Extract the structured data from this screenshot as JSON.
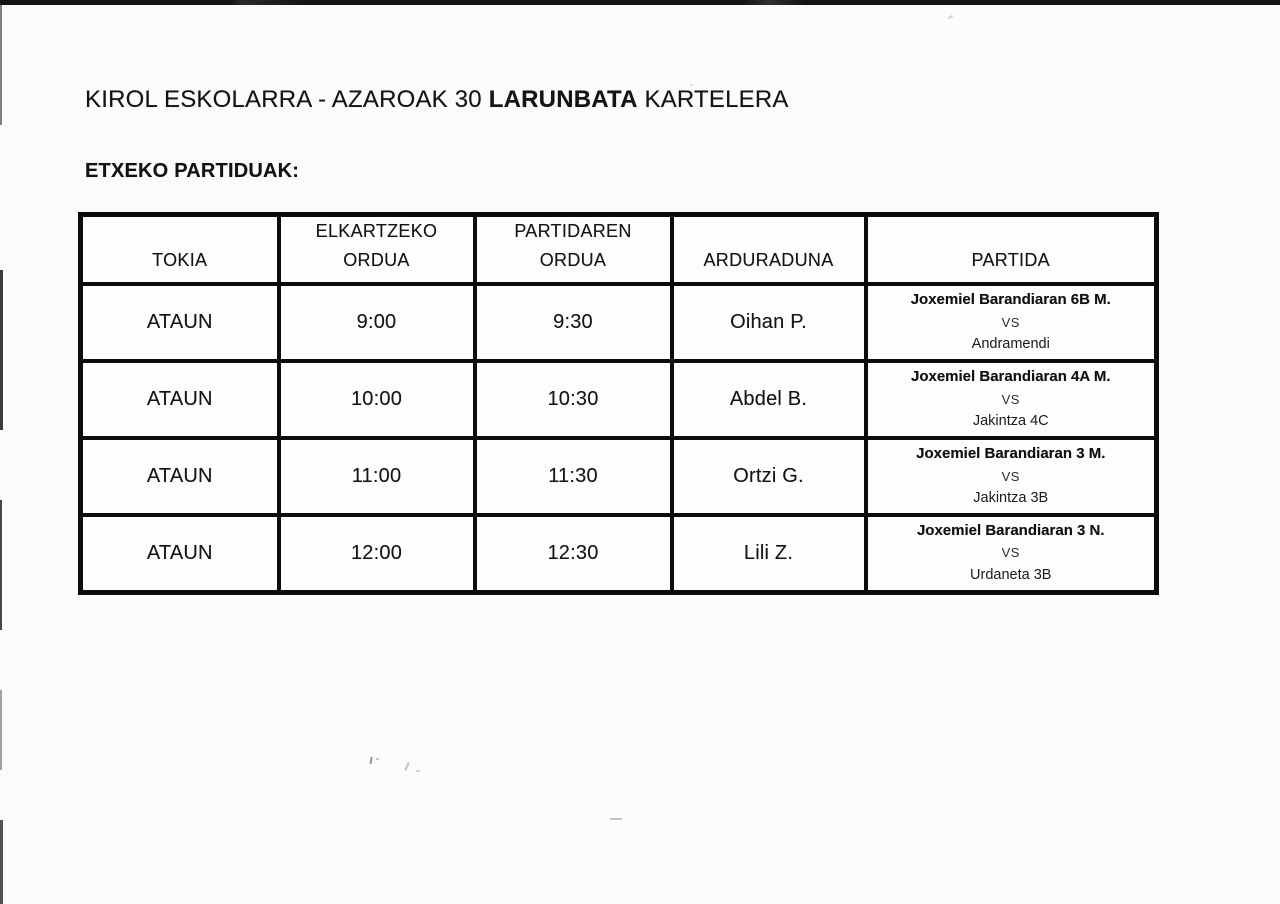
{
  "document": {
    "title": {
      "prefix": "KIROL ESKOLARRA - AZAROAK 30 ",
      "highlight": "LARUNBATA",
      "suffix": " KARTELERA"
    },
    "section_heading": "ETXEKO PARTIDUAK:"
  },
  "table": {
    "headers": [
      {
        "line1": "",
        "line2": "TOKIA"
      },
      {
        "line1": "ELKARTZEKO",
        "line2": "ORDUA"
      },
      {
        "line1": "PARTIDAREN",
        "line2": "ORDUA"
      },
      {
        "line1": "",
        "line2": "ARDURADUNA"
      },
      {
        "line1": "",
        "line2": "PARTIDA"
      }
    ],
    "rows": [
      {
        "tokia": "ATAUN",
        "elkartzeko_ordua": "9:00",
        "partidaren_ordua": "9:30",
        "arduraduna": "Oihan P.",
        "partida": {
          "home": "Joxemiel Barandiaran 6B M.",
          "vs": "VS",
          "away": "Andramendi"
        }
      },
      {
        "tokia": "ATAUN",
        "elkartzeko_ordua": "10:00",
        "partidaren_ordua": "10:30",
        "arduraduna": "Abdel B.",
        "partida": {
          "home": "Joxemiel Barandiaran 4A M.",
          "vs": "VS",
          "away": "Jakintza 4C"
        }
      },
      {
        "tokia": "ATAUN",
        "elkartzeko_ordua": "11:00",
        "partidaren_ordua": "11:30",
        "arduraduna": "Ortzi G.",
        "partida": {
          "home": "Joxemiel Barandiaran 3 M.",
          "vs": "VS",
          "away": "Jakintza 3B"
        }
      },
      {
        "tokia": "ATAUN",
        "elkartzeko_ordua": "12:00",
        "partidaren_ordua": "12:30",
        "arduraduna": "Lili Z.",
        "partida": {
          "home": "Joxemiel Barandiaran 3 N.",
          "vs": "VS",
          "away": "Urdaneta 3B"
        }
      }
    ]
  },
  "colors": {
    "ink": "#141414",
    "paper": "#fbfbfa",
    "border": "#0c0c0c"
  }
}
